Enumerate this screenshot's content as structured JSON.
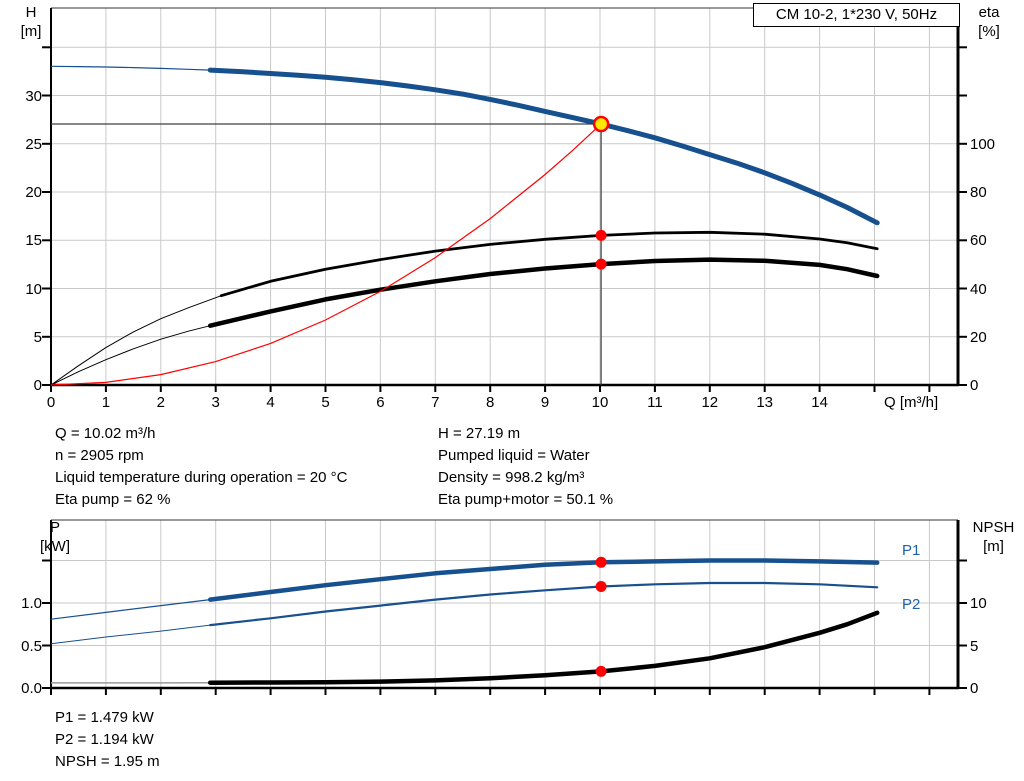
{
  "colors": {
    "blue_curve": "#17508E",
    "blue_text": "#2161A8",
    "red": "#FF0000",
    "yellow": "#FFE600",
    "black": "#000000",
    "thin_gray": "#9A9A9A",
    "grid": "#C9C9C9",
    "crosshair": "#404040",
    "axis": "#000000"
  },
  "annotations": {
    "left": [
      "Q = 10.02 m³/h",
      "n = 2905 rpm",
      "Liquid temperature during operation = 20 °C",
      "Eta pump = 62 %"
    ],
    "right": [
      "H = 27.19 m",
      "Pumped liquid = Water",
      "Density = 998.2 kg/m³",
      "Eta pump+motor = 50.1 %"
    ],
    "bottom": [
      "P1 = 1.479 kW",
      "P2 = 1.194 kW",
      "NPSH = 1.95 m"
    ]
  },
  "chart_data": [
    {
      "type": "line",
      "title": "CM 10-2, 1*230 V, 50Hz",
      "x_axis": {
        "label": "Q [m³/h]",
        "min": 0,
        "max": 16.5,
        "tick_labels": [
          "0",
          "1",
          "2",
          "3",
          "4",
          "5",
          "6",
          "7",
          "8",
          "9",
          "10",
          "11",
          "12",
          "13",
          "14"
        ],
        "unlabeled_ticks": [
          15,
          16
        ]
      },
      "y_left": {
        "name": "H",
        "unit": "[m]",
        "min": 0,
        "max": 39,
        "tick_labels": [
          "0",
          "5",
          "10",
          "15",
          "20",
          "25",
          "30"
        ],
        "tick_step": 5,
        "unlabeled_ticks": [
          35
        ]
      },
      "y_right": {
        "name": "eta",
        "unit": "[%]",
        "min": 0,
        "max": 156,
        "tick_labels": [
          "0",
          "20",
          "40",
          "60",
          "80",
          "100"
        ],
        "tick_step": 20,
        "unlabeled_ticks": [
          120,
          140
        ]
      },
      "grid": true,
      "series": [
        {
          "name": "qh-curve",
          "axis": "left",
          "color_key": "blue_curve",
          "width": 5,
          "thin_width": 1.2,
          "thin_until": 2.9,
          "points": [
            [
              0,
              33.2
            ],
            [
              0.5,
              33.17
            ],
            [
              1,
              33.12
            ],
            [
              1.5,
              33.06
            ],
            [
              2,
              32.98
            ],
            [
              2.5,
              32.89
            ],
            [
              2.9,
              32.8
            ],
            [
              3.5,
              32.62
            ],
            [
              4,
              32.45
            ],
            [
              4.5,
              32.27
            ],
            [
              5,
              32.05
            ],
            [
              5.5,
              31.8
            ],
            [
              6,
              31.5
            ],
            [
              6.5,
              31.15
            ],
            [
              7,
              30.75
            ],
            [
              7.5,
              30.3
            ],
            [
              8,
              29.75
            ],
            [
              8.5,
              29.15
            ],
            [
              9,
              28.5
            ],
            [
              9.5,
              27.85
            ],
            [
              10.02,
              27.19
            ],
            [
              10.5,
              26.5
            ],
            [
              11,
              25.75
            ],
            [
              11.5,
              24.9
            ],
            [
              12,
              24.0
            ],
            [
              12.5,
              23.1
            ],
            [
              13,
              22.1
            ],
            [
              13.5,
              21.0
            ],
            [
              14,
              19.8
            ],
            [
              14.5,
              18.5
            ],
            [
              15.05,
              16.9
            ]
          ]
        },
        {
          "name": "eta-pump-curve",
          "axis": "right",
          "color_key": "black",
          "width": 2.8,
          "thin_width": 1,
          "thin_until": 3.1,
          "points": [
            [
              0,
              0
            ],
            [
              0.5,
              8
            ],
            [
              1,
              15.5
            ],
            [
              1.5,
              22
            ],
            [
              2,
              27.5
            ],
            [
              2.5,
              32
            ],
            [
              3.1,
              37
            ],
            [
              4,
              43
            ],
            [
              5,
              48
            ],
            [
              6,
              52
            ],
            [
              7,
              55.5
            ],
            [
              8,
              58.3
            ],
            [
              9,
              60.4
            ],
            [
              10.02,
              62
            ],
            [
              11,
              63
            ],
            [
              12,
              63.3
            ],
            [
              13,
              62.5
            ],
            [
              14,
              60.5
            ],
            [
              14.5,
              59
            ],
            [
              15.05,
              56.5
            ]
          ]
        },
        {
          "name": "eta-pump-motor-curve",
          "axis": "right",
          "color_key": "black",
          "width": 4.5,
          "thin_width": 1,
          "thin_until": 2.9,
          "points": [
            [
              0,
              0
            ],
            [
              0.5,
              5.5
            ],
            [
              1,
              10.5
            ],
            [
              1.5,
              15
            ],
            [
              2,
              19
            ],
            [
              2.5,
              22.3
            ],
            [
              2.9,
              24.6
            ],
            [
              4,
              30.5
            ],
            [
              5,
              35.5
            ],
            [
              6,
              39.5
            ],
            [
              7,
              43
            ],
            [
              8,
              46
            ],
            [
              9,
              48.3
            ],
            [
              10.02,
              50.1
            ],
            [
              11,
              51.4
            ],
            [
              12,
              52
            ],
            [
              13,
              51.5
            ],
            [
              14,
              49.8
            ],
            [
              14.5,
              48
            ],
            [
              15.05,
              45.2
            ]
          ]
        },
        {
          "name": "system-curve",
          "axis": "left",
          "color_key": "red",
          "width": 1.2,
          "points": [
            [
              0,
              0
            ],
            [
              1,
              0.27
            ],
            [
              2,
              1.08
            ],
            [
              3,
              2.44
            ],
            [
              4,
              4.33
            ],
            [
              5,
              6.77
            ],
            [
              6,
              9.75
            ],
            [
              7,
              13.27
            ],
            [
              8,
              17.33
            ],
            [
              9,
              21.93
            ],
            [
              9.5,
              24.44
            ],
            [
              10.02,
              27.19
            ]
          ]
        }
      ],
      "crosshair": {
        "q": 10.02,
        "h": 27.19
      },
      "markers": [
        {
          "style": "duty",
          "q": 10.02,
          "value": 27.19,
          "axis": "left"
        },
        {
          "style": "dot",
          "q": 10.02,
          "value": 62,
          "axis": "right"
        },
        {
          "style": "dot",
          "q": 10.02,
          "value": 50.1,
          "axis": "right"
        }
      ]
    },
    {
      "type": "line",
      "x_axis": {
        "label": "",
        "min": 0,
        "max": 16.5,
        "tick_labels": [],
        "unlabeled_ticks": []
      },
      "y_left": {
        "name": "P",
        "unit": "[kW]",
        "min": 0,
        "max": 2.0,
        "tick_labels": [
          "0.0",
          "0.5",
          "1.0"
        ],
        "tick_step": 0.5,
        "unlabeled_ticks": [
          1.5
        ]
      },
      "y_right": {
        "name": "NPSH",
        "unit": "[m]",
        "min": 0,
        "max": 20,
        "tick_labels": [
          "0",
          "5",
          "10"
        ],
        "tick_step": 5,
        "unlabeled_ticks": [
          15
        ]
      },
      "grid": true,
      "series": [
        {
          "name": "p1-curve",
          "label": "P1",
          "axis": "left",
          "color_key": "blue_curve",
          "width": 4.5,
          "thin_width": 1.2,
          "thin_until": 2.9,
          "points": [
            [
              0,
              0.81
            ],
            [
              1,
              0.89
            ],
            [
              2,
              0.97
            ],
            [
              2.9,
              1.04
            ],
            [
              4,
              1.13
            ],
            [
              5,
              1.21
            ],
            [
              6,
              1.28
            ],
            [
              7,
              1.35
            ],
            [
              8,
              1.4
            ],
            [
              9,
              1.45
            ],
            [
              10.02,
              1.479
            ],
            [
              11,
              1.49
            ],
            [
              12,
              1.5
            ],
            [
              13,
              1.5
            ],
            [
              14,
              1.49
            ],
            [
              15.05,
              1.475
            ]
          ]
        },
        {
          "name": "p2-curve",
          "label": "P2",
          "axis": "left",
          "color_key": "blue_curve",
          "width": 2.2,
          "thin_width": 1,
          "thin_until": 2.9,
          "points": [
            [
              0,
              0.52
            ],
            [
              1,
              0.6
            ],
            [
              2,
              0.67
            ],
            [
              2.9,
              0.74
            ],
            [
              4,
              0.82
            ],
            [
              5,
              0.9
            ],
            [
              6,
              0.97
            ],
            [
              7,
              1.04
            ],
            [
              8,
              1.1
            ],
            [
              9,
              1.15
            ],
            [
              10.02,
              1.194
            ],
            [
              11,
              1.22
            ],
            [
              12,
              1.235
            ],
            [
              13,
              1.235
            ],
            [
              14,
              1.22
            ],
            [
              15.05,
              1.185
            ]
          ]
        },
        {
          "name": "npsh-curve",
          "axis": "right",
          "color_key": "black",
          "width": 4.5,
          "thin_width": 1.5,
          "thin_color_key": "thin_gray",
          "thin_until": 2.9,
          "points": [
            [
              0,
              0.6
            ],
            [
              1,
              0.6
            ],
            [
              2,
              0.6
            ],
            [
              2.9,
              0.62
            ],
            [
              4,
              0.65
            ],
            [
              5,
              0.68
            ],
            [
              6,
              0.75
            ],
            [
              7,
              0.9
            ],
            [
              8,
              1.15
            ],
            [
              9,
              1.5
            ],
            [
              10.02,
              1.95
            ],
            [
              11,
              2.6
            ],
            [
              12,
              3.5
            ],
            [
              13,
              4.8
            ],
            [
              14,
              6.5
            ],
            [
              14.5,
              7.5
            ],
            [
              15.05,
              8.85
            ]
          ]
        }
      ],
      "markers": [
        {
          "style": "dot",
          "q": 10.02,
          "value": 1.479,
          "axis": "left"
        },
        {
          "style": "dot",
          "q": 10.02,
          "value": 1.194,
          "axis": "left"
        },
        {
          "style": "dot",
          "q": 10.02,
          "value": 1.95,
          "axis": "right"
        }
      ]
    }
  ]
}
